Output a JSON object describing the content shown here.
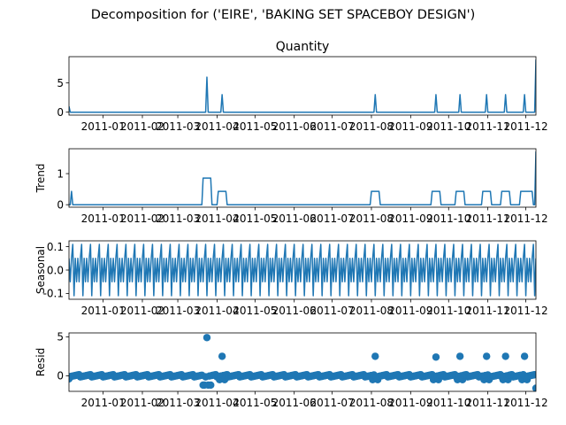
{
  "chart_data": {
    "type": "line",
    "suptitle": "Decomposition for ('EIRE', 'BAKING SET SPACEBOY DESIGN')",
    "x_range": [
      "2010-12-05",
      "2011-12-09"
    ],
    "x_tick_labels": [
      "2011-01",
      "2011-02",
      "2011-03",
      "2011-04",
      "2011-05",
      "2011-06",
      "2011-07",
      "2011-08",
      "2011-09",
      "2011-10",
      "2011-11",
      "2011-12"
    ],
    "x_tick_dates": [
      "2011-01-01",
      "2011-02-01",
      "2011-03-01",
      "2011-04-01",
      "2011-05-01",
      "2011-06-01",
      "2011-07-01",
      "2011-08-01",
      "2011-09-01",
      "2011-10-01",
      "2011-11-01",
      "2011-12-01"
    ],
    "color": "#1f77b4",
    "panels": [
      {
        "id": "observed",
        "title": "Quantity",
        "ylabel": "",
        "type": "line",
        "ylim": [
          -0.5,
          9.5
        ],
        "yticks": [
          0,
          5
        ],
        "baseline": 0,
        "start_value": 1,
        "spikes": [
          {
            "date": "2011-03-24",
            "value": 6
          },
          {
            "date": "2011-04-05",
            "value": 3
          },
          {
            "date": "2011-08-04",
            "value": 3
          },
          {
            "date": "2011-09-21",
            "value": 3
          },
          {
            "date": "2011-10-10",
            "value": 3
          },
          {
            "date": "2011-10-31",
            "value": 3
          },
          {
            "date": "2011-11-15",
            "value": 3
          },
          {
            "date": "2011-11-30",
            "value": 3
          },
          {
            "date": "2011-12-09",
            "value": 9
          }
        ]
      },
      {
        "id": "trend",
        "title": "",
        "ylabel": "Trend",
        "type": "line",
        "ylim": [
          -0.08,
          1.8
        ],
        "yticks": [
          0,
          1
        ],
        "baseline": 0,
        "plateaus": [
          {
            "start": "2010-12-07",
            "end": "2010-12-07",
            "value": 0.43
          },
          {
            "start": "2011-03-21",
            "end": "2011-03-27",
            "value": 0.857
          },
          {
            "start": "2011-04-02",
            "end": "2011-04-08",
            "value": 0.429
          },
          {
            "start": "2011-08-01",
            "end": "2011-08-07",
            "value": 0.429
          },
          {
            "start": "2011-09-18",
            "end": "2011-09-24",
            "value": 0.429
          },
          {
            "start": "2011-10-07",
            "end": "2011-10-13",
            "value": 0.429
          },
          {
            "start": "2011-10-28",
            "end": "2011-11-03",
            "value": 0.429
          },
          {
            "start": "2011-11-12",
            "end": "2011-11-18",
            "value": 0.429
          },
          {
            "start": "2011-11-27",
            "end": "2011-12-06",
            "value": 0.429
          }
        ],
        "end_value": 1.71
      },
      {
        "id": "seasonal",
        "title": "",
        "ylabel": "Seasonal",
        "type": "line",
        "ylim": [
          -0.125,
          0.125
        ],
        "yticks": [
          -0.1,
          0.0,
          0.1
        ],
        "period_days": 7,
        "weekly_pattern": [
          0.05,
          -0.05,
          0.05,
          0.11,
          -0.11,
          0.05,
          -0.05
        ]
      },
      {
        "id": "resid",
        "title": "",
        "ylabel": "Resid",
        "type": "scatter",
        "ylim": [
          -2,
          5.5
        ],
        "yticks": [
          0,
          5
        ],
        "baseline": 0,
        "outliers": [
          {
            "date": "2010-12-05",
            "value": -0.4
          },
          {
            "date": "2011-03-21",
            "value": -1.2
          },
          {
            "date": "2011-03-22",
            "value": -1.2
          },
          {
            "date": "2011-03-24",
            "value": 4.9
          },
          {
            "date": "2011-03-25",
            "value": -1.2
          },
          {
            "date": "2011-03-27",
            "value": -1.2
          },
          {
            "date": "2011-04-05",
            "value": 2.5
          },
          {
            "date": "2011-04-03",
            "value": -0.5
          },
          {
            "date": "2011-04-07",
            "value": -0.5
          },
          {
            "date": "2011-08-04",
            "value": 2.5
          },
          {
            "date": "2011-08-02",
            "value": -0.5
          },
          {
            "date": "2011-08-06",
            "value": -0.5
          },
          {
            "date": "2011-09-21",
            "value": 2.4
          },
          {
            "date": "2011-09-19",
            "value": -0.5
          },
          {
            "date": "2011-09-23",
            "value": -0.5
          },
          {
            "date": "2011-10-10",
            "value": 2.5
          },
          {
            "date": "2011-10-08",
            "value": -0.5
          },
          {
            "date": "2011-10-12",
            "value": -0.5
          },
          {
            "date": "2011-10-31",
            "value": 2.5
          },
          {
            "date": "2011-10-29",
            "value": -0.5
          },
          {
            "date": "2011-11-02",
            "value": -0.5
          },
          {
            "date": "2011-11-15",
            "value": 2.5
          },
          {
            "date": "2011-11-13",
            "value": -0.5
          },
          {
            "date": "2011-11-17",
            "value": -0.5
          },
          {
            "date": "2011-11-30",
            "value": 2.5
          },
          {
            "date": "2011-11-28",
            "value": -0.5
          },
          {
            "date": "2011-12-02",
            "value": -0.5
          },
          {
            "date": "2011-12-09",
            "value": -1.6
          }
        ]
      }
    ]
  }
}
